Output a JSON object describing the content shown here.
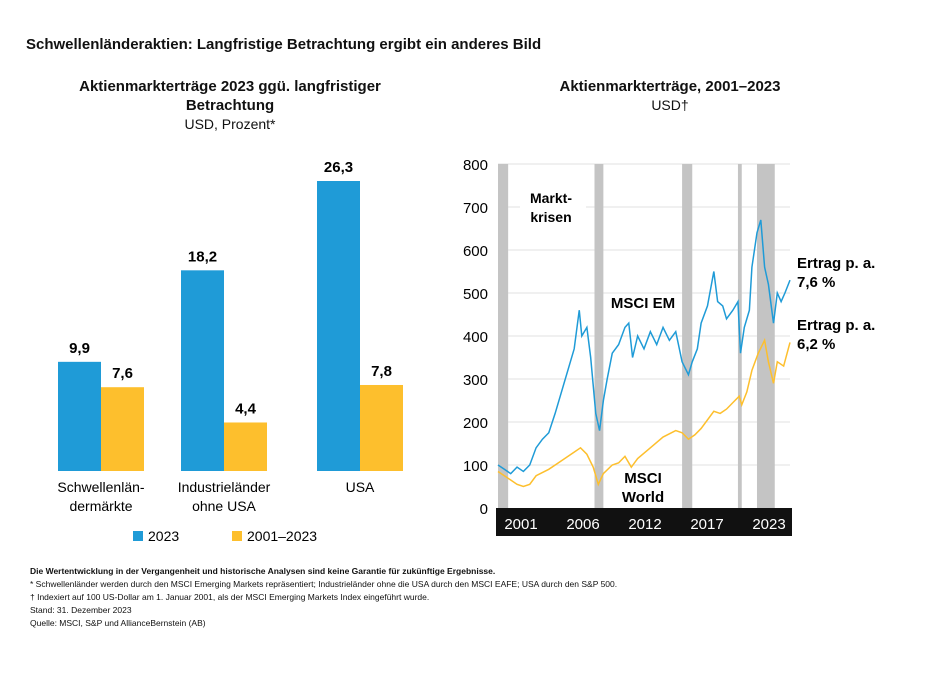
{
  "title": "Schwellenländeraktien: Langfristige Betrachtung ergibt ein anderes Bild",
  "colors": {
    "blue": "#1f9bd7",
    "yellow": "#fdbf2d",
    "crisis": "#c4c4c4"
  },
  "chart_data": [
    {
      "type": "bar",
      "title": "Aktienmarkterträge 2023 ggü. langfristiger Betrachtung",
      "subtitle": "USD, Prozent*",
      "categories": [
        "Schwellenländermärkte",
        "Industrieländer ohne USA",
        "USA"
      ],
      "category_labels": [
        [
          "Schwellenlän-",
          "dermärkte"
        ],
        [
          "Industrieländer",
          "ohne USA"
        ],
        [
          "USA"
        ]
      ],
      "series": [
        {
          "name": "2023",
          "values": [
            9.9,
            18.2,
            26.3
          ],
          "labels": [
            "9,9",
            "18,2",
            "26,3"
          ]
        },
        {
          "name": "2001–2023",
          "values": [
            7.6,
            4.4,
            7.8
          ],
          "labels": [
            "7,6",
            "4,4",
            "7,8"
          ]
        }
      ],
      "ylim": [
        0,
        30
      ],
      "legend": "bottom"
    },
    {
      "type": "line",
      "title": "Aktienmarkterträge, 2001–2023",
      "subtitle": "USD†",
      "ylim": [
        0,
        800
      ],
      "yticks": [
        0,
        100,
        200,
        300,
        400,
        500,
        600,
        700,
        800
      ],
      "xlim": [
        2001,
        2024
      ],
      "xtick_labels": [
        "2001",
        "2006",
        "2012",
        "2017",
        "2023"
      ],
      "grid": true,
      "crisis_label": [
        "Markt-",
        "krisen"
      ],
      "crisis_periods": [
        [
          2001,
          2001.8
        ],
        [
          2008.6,
          2009.3
        ],
        [
          2015.5,
          2016.3
        ],
        [
          2019.9,
          2020.2
        ],
        [
          2021.4,
          2022.8
        ]
      ],
      "series": [
        {
          "name": "MSCI EM",
          "annotation": [
            "Ertrag p. a.",
            "7,6 %"
          ],
          "x": [
            2001,
            2001.5,
            2002,
            2002.5,
            2003,
            2003.5,
            2004,
            2004.5,
            2005,
            2005.5,
            2006,
            2006.5,
            2007,
            2007.4,
            2007.6,
            2008,
            2008.3,
            2008.7,
            2009,
            2009.3,
            2009.6,
            2010,
            2010.5,
            2011,
            2011.3,
            2011.6,
            2012,
            2012.5,
            2013,
            2013.5,
            2014,
            2014.5,
            2015,
            2015.5,
            2016,
            2016.3,
            2016.7,
            2017,
            2017.5,
            2018,
            2018.3,
            2018.7,
            2019,
            2019.5,
            2019.9,
            2020.1,
            2020.4,
            2020.8,
            2021,
            2021.4,
            2021.7,
            2022,
            2022.3,
            2022.7,
            2023,
            2023.3,
            2023.6,
            2024
          ],
          "y": [
            100,
            90,
            80,
            95,
            85,
            100,
            140,
            160,
            175,
            220,
            270,
            320,
            370,
            460,
            400,
            420,
            350,
            220,
            180,
            250,
            300,
            360,
            380,
            420,
            430,
            350,
            400,
            370,
            410,
            380,
            420,
            390,
            410,
            340,
            310,
            340,
            370,
            430,
            470,
            550,
            480,
            470,
            440,
            460,
            480,
            360,
            420,
            460,
            560,
            640,
            670,
            560,
            520,
            430,
            500,
            480,
            500,
            530
          ]
        },
        {
          "name": "MSCI World",
          "annotation": [
            "Ertrag p. a.",
            "6,2 %"
          ],
          "x": [
            2001,
            2001.5,
            2002,
            2002.5,
            2003,
            2003.5,
            2004,
            2005,
            2006,
            2007,
            2007.5,
            2008,
            2008.5,
            2008.9,
            2009.3,
            2010,
            2010.5,
            2011,
            2011.5,
            2012,
            2013,
            2014,
            2015,
            2015.5,
            2016,
            2016.5,
            2017,
            2018,
            2018.5,
            2019,
            2019.5,
            2020,
            2020.2,
            2020.6,
            2021,
            2021.5,
            2022,
            2022.3,
            2022.7,
            2023,
            2023.5,
            2024
          ],
          "y": [
            85,
            75,
            65,
            55,
            50,
            55,
            75,
            90,
            110,
            130,
            140,
            125,
            95,
            55,
            80,
            100,
            105,
            120,
            95,
            115,
            140,
            165,
            180,
            175,
            160,
            170,
            185,
            225,
            220,
            230,
            245,
            260,
            240,
            270,
            320,
            360,
            390,
            340,
            290,
            340,
            330,
            385
          ]
        }
      ]
    }
  ],
  "notes": [
    "Die Wertentwicklung in der Vergangenheit und historische Analysen sind keine Garantie für zukünftige Ergebnisse.",
    "* Schwellenländer werden durch den MSCI Emerging Markets repräsentiert; Industrieländer ohne die USA durch den MSCI EAFE; USA durch den S&P 500.",
    "† Indexiert auf 100 US-Dollar am 1. Januar 2001, als der MSCI Emerging Markets Index eingeführt wurde.",
    "Stand: 31. Dezember 2023",
    "Quelle: MSCI, S&P und AllianceBernstein (AB)"
  ]
}
